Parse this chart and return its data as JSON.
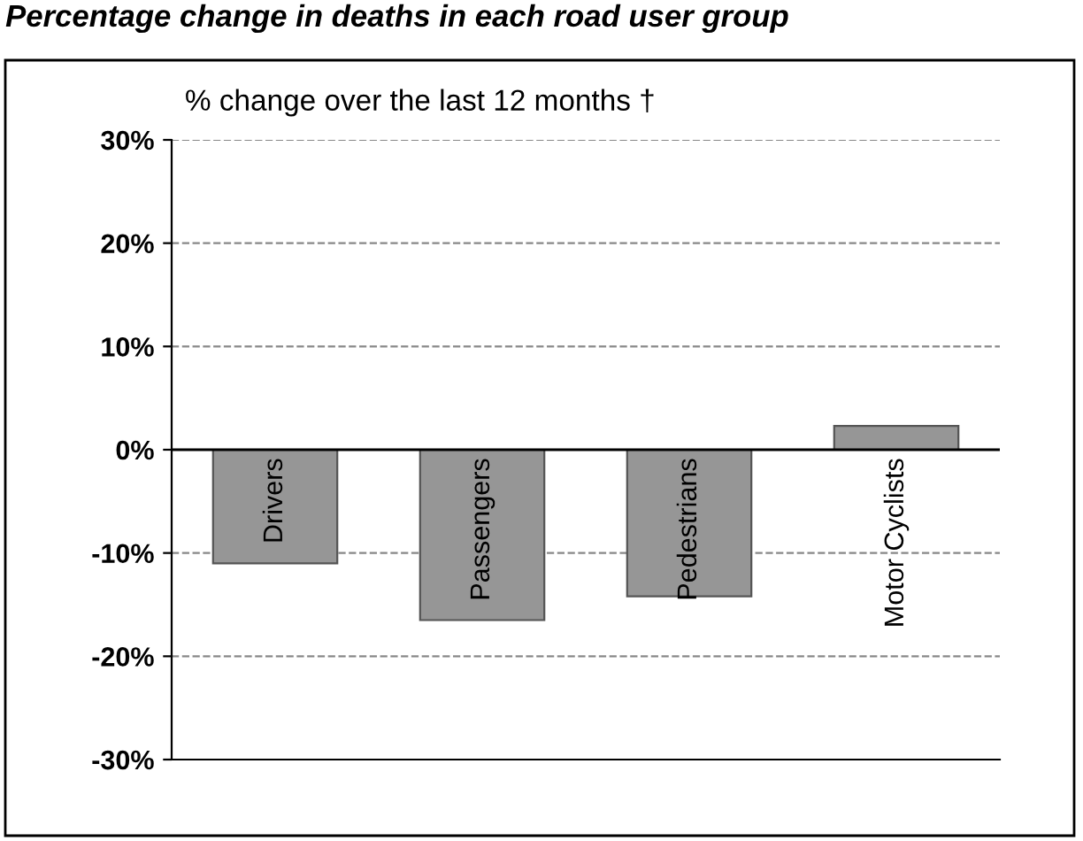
{
  "chart_data": {
    "type": "bar",
    "title": "Percentage change in deaths in each road user group",
    "subtitle": "% change over the last 12 months †",
    "categories": [
      "Drivers",
      "Passengers",
      "Pedestrians",
      "Motor Cyclists"
    ],
    "values": [
      -11.0,
      -16.5,
      -14.2,
      2.3
    ],
    "color": "#969696",
    "ylim": [
      -30,
      30
    ],
    "yticks": [
      {
        "value": -30,
        "label": "-30%"
      },
      {
        "value": -20,
        "label": "-20%"
      },
      {
        "value": -10,
        "label": "-10%"
      },
      {
        "value": 0,
        "label": "0%"
      },
      {
        "value": 10,
        "label": "10%"
      },
      {
        "value": 20,
        "label": "20%"
      },
      {
        "value": 30,
        "label": "30%"
      }
    ],
    "grid": "y"
  }
}
